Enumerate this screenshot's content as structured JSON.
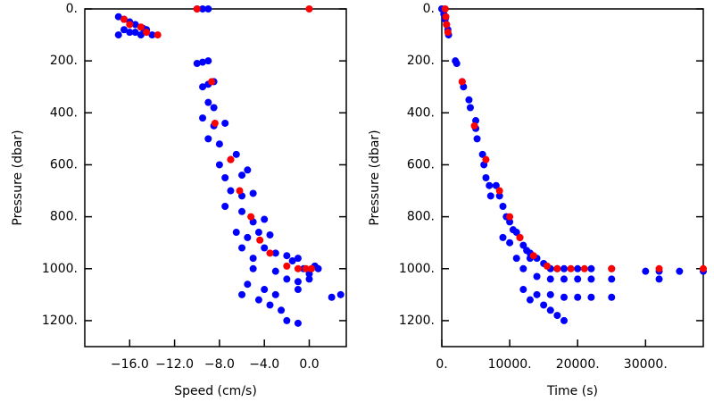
{
  "chart_data": [
    {
      "type": "scatter",
      "xlabel": "Speed (cm/s)",
      "ylabel": "Pressure (dbar)",
      "xlim": [
        -20,
        3.3
      ],
      "ylim": [
        0,
        1300
      ],
      "y_inverted": true,
      "xticks": [
        {
          "value": -16,
          "label": "−16.0"
        },
        {
          "value": -12,
          "label": "−12.0"
        },
        {
          "value": -8,
          "label": "−8.0"
        },
        {
          "value": -4,
          "label": "−4.0"
        },
        {
          "value": 0,
          "label": "0.0"
        }
      ],
      "yticks": [
        {
          "value": 0,
          "label": "0."
        },
        {
          "value": 200,
          "label": "200."
        },
        {
          "value": 400,
          "label": "400."
        },
        {
          "value": 600,
          "label": "600."
        },
        {
          "value": 800,
          "label": "800."
        },
        {
          "value": 1000,
          "label": "1000."
        },
        {
          "value": 1200,
          "label": "1200."
        }
      ],
      "series": [
        {
          "color": "#0000ff",
          "x": [
            -17,
            -16.5,
            -16,
            -15.5,
            -15,
            -14.5,
            -16,
            -17,
            -15,
            -14,
            -16.5,
            -15.5,
            -14.8,
            -10,
            -9,
            -9.5,
            -10,
            -9.5,
            -9,
            -9.5,
            -9,
            -8.5,
            -9,
            -8.5,
            -9.5,
            -8.5,
            -7.5,
            -9,
            -8,
            -7,
            -6.5,
            -8,
            -7.5,
            -6,
            -5.5,
            -7,
            -6,
            -5,
            -7.5,
            -6,
            -5,
            -4,
            -6.5,
            -5.5,
            -4.5,
            -3.5,
            -6,
            -5,
            -4,
            -3,
            -2,
            -1,
            -0.5,
            0,
            0.5,
            -5,
            -3,
            -2,
            -1,
            0,
            -5.5,
            -4,
            -3,
            -1,
            -6,
            -4.5,
            -3.5,
            -2.5,
            -2,
            -1,
            2,
            2.8,
            -1.5,
            0.8
          ],
          "y": [
            30,
            40,
            50,
            60,
            70,
            80,
            90,
            100,
            100,
            100,
            80,
            90,
            75,
            0,
            0,
            0,
            210,
            205,
            200,
            300,
            290,
            280,
            360,
            380,
            420,
            450,
            440,
            500,
            520,
            580,
            560,
            600,
            650,
            640,
            620,
            700,
            720,
            710,
            760,
            780,
            820,
            810,
            860,
            880,
            860,
            870,
            920,
            960,
            920,
            940,
            950,
            960,
            1000,
            1020,
            990,
            1000,
            1010,
            1040,
            1050,
            1040,
            1060,
            1080,
            1100,
            1080,
            1100,
            1120,
            1140,
            1160,
            1200,
            1210,
            1110,
            1100,
            970,
            1000
          ]
        },
        {
          "color": "#ff0000",
          "x": [
            -16.5,
            -16,
            -15,
            -14.5,
            -13.5,
            -10,
            0,
            -8.7,
            -8.4,
            -7,
            -6.2,
            -5.2,
            -4.4,
            -3.5,
            -2,
            -1,
            -0.3,
            0.2
          ],
          "y": [
            40,
            60,
            70,
            90,
            100,
            0,
            0,
            280,
            440,
            580,
            700,
            800,
            890,
            940,
            990,
            1000,
            1000,
            1000
          ]
        }
      ]
    },
    {
      "type": "scatter",
      "xlabel": "Time (s)",
      "ylabel": "Pressure (dbar)",
      "xlim": [
        0,
        38500
      ],
      "ylim": [
        0,
        1300
      ],
      "y_inverted": true,
      "xticks": [
        {
          "value": 0,
          "label": "0."
        },
        {
          "value": 10000,
          "label": "10000."
        },
        {
          "value": 20000,
          "label": "20000."
        },
        {
          "value": 30000,
          "label": "30000."
        }
      ],
      "yticks": [
        {
          "value": 0,
          "label": "0."
        },
        {
          "value": 200,
          "label": "200."
        },
        {
          "value": 400,
          "label": "400."
        },
        {
          "value": 600,
          "label": "600."
        },
        {
          "value": 800,
          "label": "800."
        },
        {
          "value": 1000,
          "label": "1000."
        },
        {
          "value": 1200,
          "label": "1200."
        }
      ],
      "series": [
        {
          "color": "#0000ff",
          "x": [
            0,
            300,
            500,
            700,
            900,
            1000,
            2000,
            2200,
            3000,
            3200,
            4000,
            4200,
            5000,
            5000,
            5200,
            6000,
            6200,
            6500,
            7000,
            7200,
            8000,
            8500,
            9000,
            9500,
            10000,
            10500,
            11000,
            11500,
            12000,
            12500,
            13000,
            13000,
            14000,
            15000,
            16000,
            17000,
            18000,
            20000,
            22000,
            25000,
            14000,
            16000,
            18000,
            20000,
            22000,
            25000,
            12000,
            14000,
            16000,
            18000,
            20000,
            22000,
            25000,
            13000,
            15000,
            16000,
            17000,
            18000,
            30000,
            32000,
            32000,
            35000,
            38500,
            9000,
            10000,
            11000,
            12000
          ],
          "y": [
            0,
            20,
            40,
            60,
            80,
            100,
            200,
            210,
            280,
            300,
            350,
            380,
            430,
            460,
            500,
            560,
            600,
            650,
            680,
            720,
            680,
            720,
            760,
            800,
            820,
            850,
            860,
            880,
            910,
            930,
            940,
            960,
            960,
            980,
            1000,
            1000,
            1000,
            1000,
            1000,
            1000,
            1030,
            1040,
            1040,
            1040,
            1040,
            1040,
            1080,
            1100,
            1100,
            1110,
            1110,
            1110,
            1110,
            1120,
            1140,
            1160,
            1180,
            1200,
            1010,
            1040,
            1010,
            1010,
            1010,
            880,
            900,
            960,
            1000
          ]
        },
        {
          "color": "#ff0000",
          "x": [
            500,
            600,
            700,
            900,
            3000,
            4800,
            6500,
            8500,
            10000,
            11500,
            13500,
            15500,
            17000,
            19000,
            21000,
            25000,
            32000,
            38500
          ],
          "y": [
            0,
            30,
            60,
            90,
            280,
            450,
            580,
            700,
            800,
            880,
            950,
            990,
            1000,
            1000,
            1000,
            1000,
            1000,
            1000
          ]
        }
      ]
    }
  ]
}
